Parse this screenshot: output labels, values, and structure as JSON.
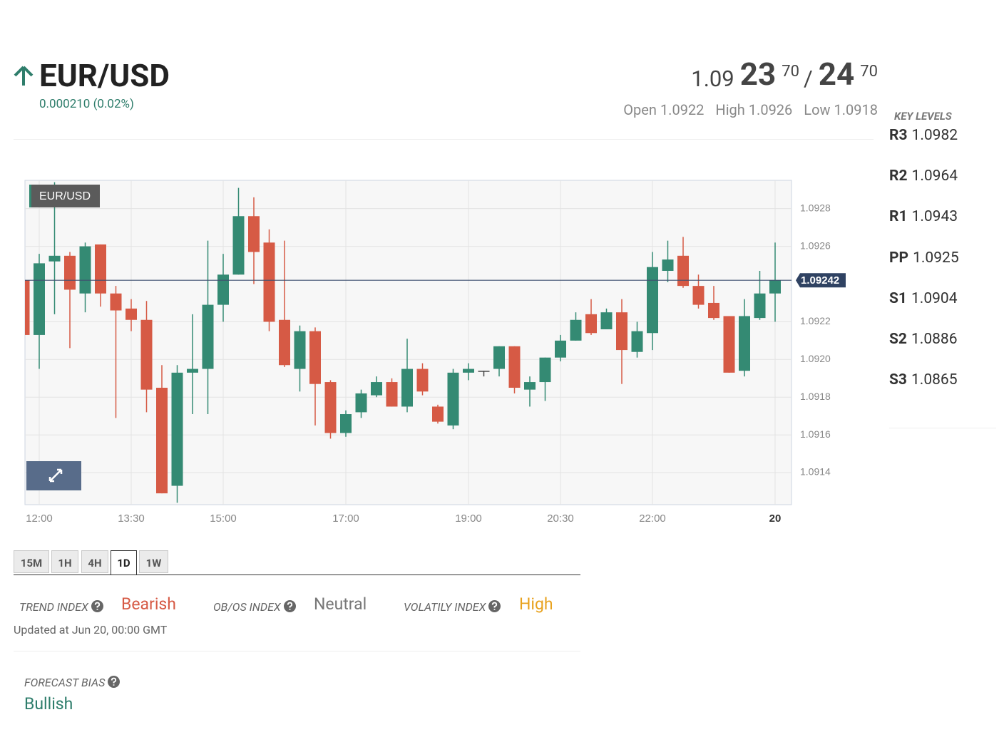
{
  "header": {
    "symbol": "EUR/USD",
    "change": "0.000210 (0.02%)",
    "price": {
      "base": "1.09",
      "bid_big": "23",
      "bid_small": "70",
      "separator": "/",
      "ask_big": "24",
      "ask_small": "70"
    },
    "stats": [
      {
        "label": "Open",
        "value": "1.0922"
      },
      {
        "label": "High",
        "value": "1.0926"
      },
      {
        "label": "Low",
        "value": "1.0918"
      }
    ]
  },
  "key_levels": {
    "title": "KEY LEVELS",
    "levels": [
      {
        "label": "R3",
        "value": "1.0982"
      },
      {
        "label": "R2",
        "value": "1.0964"
      },
      {
        "label": "R1",
        "value": "1.0943"
      },
      {
        "label": "PP",
        "value": "1.0925"
      },
      {
        "label": "S1",
        "value": "1.0904"
      },
      {
        "label": "S2",
        "value": "1.0886"
      },
      {
        "label": "S3",
        "value": "1.0865"
      }
    ]
  },
  "chart_data": {
    "type": "candlestick",
    "name": "EUR/USD",
    "up_color": "#348a73",
    "down_color": "#d65a45",
    "doji_color": "#444444",
    "categories": [
      null,
      "12:00",
      null,
      null,
      null,
      null,
      null,
      "13:30",
      null,
      null,
      null,
      null,
      null,
      "15:00",
      null,
      null,
      null,
      null,
      null,
      null,
      null,
      "17:00",
      null,
      null,
      null,
      null,
      null,
      null,
      null,
      "19:00",
      null,
      null,
      null,
      null,
      null,
      "20:30",
      null,
      null,
      null,
      null,
      null,
      "22:00",
      null,
      null,
      null,
      null,
      null,
      null,
      null,
      "20"
    ],
    "open": [
      1.09242,
      1.09213,
      1.09252,
      1.09255,
      1.09235,
      1.09261,
      1.09235,
      1.09227,
      1.09221,
      1.09185,
      1.09133,
      1.09193,
      1.09195,
      1.09229,
      1.09245,
      1.09276,
      1.09262,
      1.09221,
      1.09195,
      1.09215,
      1.09188,
      1.09161,
      1.09172,
      1.09181,
      1.09188,
      1.09175,
      1.09195,
      1.09175,
      1.09165,
      1.09193,
      1.09194,
      1.09195,
      1.09207,
      1.09184,
      1.09188,
      1.09201,
      1.0921,
      1.09224,
      1.09216,
      1.09225,
      1.09204,
      1.09214,
      1.09247,
      1.09255,
      1.09239,
      1.0923,
      1.09223,
      1.09194,
      1.09222,
      1.09235
    ],
    "high": [
      1.09272,
      1.09256,
      1.09294,
      1.09257,
      1.09262,
      1.09261,
      1.09239,
      1.09232,
      1.09231,
      1.09197,
      1.09197,
      1.09224,
      1.09263,
      1.09256,
      1.09291,
      1.09286,
      1.09269,
      1.09263,
      1.09218,
      1.09217,
      1.09189,
      1.09173,
      1.09184,
      1.09191,
      1.0919,
      1.09211,
      1.09198,
      1.09176,
      1.09195,
      1.09198,
      1.09194,
      1.09207,
      1.09207,
      1.09191,
      1.09201,
      1.09213,
      1.09225,
      1.09232,
      1.09227,
      1.09232,
      1.0922,
      1.09257,
      1.09263,
      1.09265,
      1.09245,
      1.09239,
      1.09223,
      1.09232,
      1.09247,
      1.09262
    ],
    "low": [
      1.09203,
      1.09195,
      1.09224,
      1.09206,
      1.09225,
      1.09228,
      1.09169,
      1.09215,
      1.09172,
      1.09129,
      1.09124,
      1.09171,
      1.09171,
      1.0922,
      1.09245,
      1.0924,
      1.09215,
      1.09196,
      1.09183,
      1.09165,
      1.09158,
      1.09159,
      1.09169,
      1.0918,
      1.09175,
      1.09172,
      1.09181,
      1.09166,
      1.09163,
      1.09189,
      1.09191,
      1.09191,
      1.09182,
      1.09175,
      1.09178,
      1.09199,
      1.0921,
      1.09213,
      1.09216,
      1.09187,
      1.09201,
      1.09205,
      1.09241,
      1.09238,
      1.09227,
      1.09221,
      1.09193,
      1.09191,
      1.09221,
      1.0922
    ],
    "close": [
      1.09213,
      1.09251,
      1.09255,
      1.09237,
      1.0926,
      1.09235,
      1.09226,
      1.09221,
      1.09184,
      1.09129,
      1.09193,
      1.09195,
      1.09229,
      1.09245,
      1.09276,
      1.09257,
      1.0922,
      1.09197,
      1.09215,
      1.09187,
      1.09161,
      1.09171,
      1.09182,
      1.09188,
      1.09175,
      1.09195,
      1.09183,
      1.09167,
      1.09193,
      1.09195,
      1.09194,
      1.09207,
      1.09185,
      1.09188,
      1.09201,
      1.0921,
      1.09221,
      1.09214,
      1.09225,
      1.09205,
      1.09215,
      1.09249,
      1.09253,
      1.09239,
      1.09229,
      1.09222,
      1.09193,
      1.09223,
      1.09235,
      1.09242
    ],
    "last_price": 1.09242,
    "ylim": [
      1.09123,
      1.09295
    ],
    "yticks": [
      1.0914,
      1.0916,
      1.0918,
      {
        "value": 1.092,
        "label": "1.0920"
      },
      1.0922,
      1.0926,
      1.0928
    ],
    "grid": true
  },
  "timeframes": {
    "options": [
      "15M",
      "1H",
      "4H",
      "1D",
      "1W"
    ],
    "active": "1D"
  },
  "indices": [
    {
      "label": "TREND INDEX",
      "value": "Bearish"
    },
    {
      "label": "OB/OS INDEX",
      "value": "Neutral"
    },
    {
      "label": "VOLATILY INDEX",
      "value": "High"
    }
  ],
  "updated": "Updated at Jun 20, 00:00 GMT",
  "forecast": {
    "label": "FORECAST BIAS",
    "value": "Bullish"
  }
}
